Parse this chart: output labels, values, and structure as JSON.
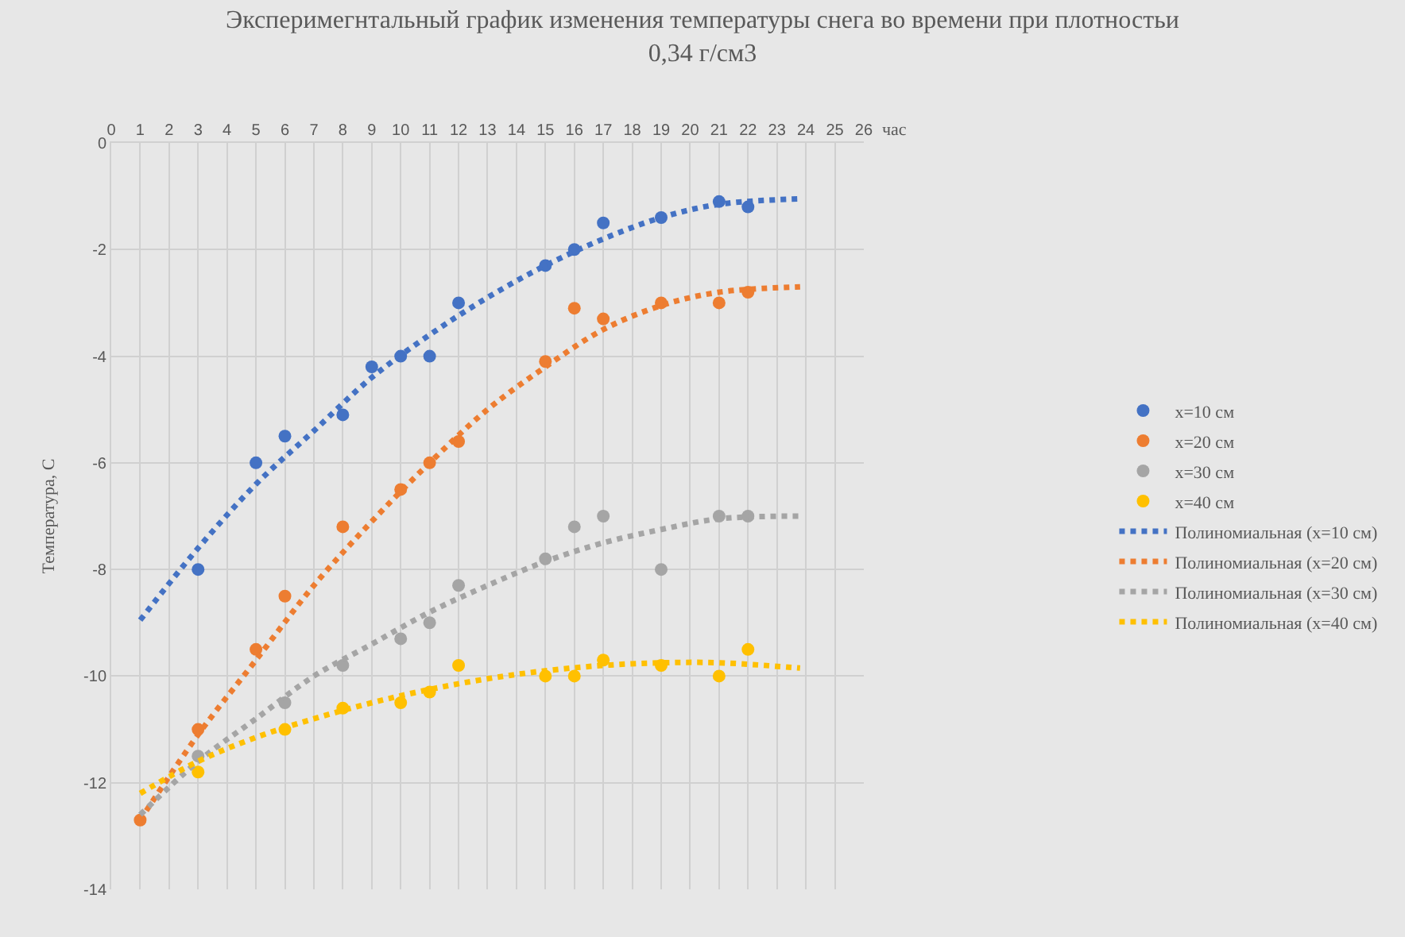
{
  "chart_data": {
    "type": "scatter",
    "title": "Эксперимегнтальный график изменения температуры снега во времени при плотностьи 0,34 г/см3",
    "xlabel": "час",
    "ylabel": "Температура, С",
    "xlim": [
      0,
      26
    ],
    "xticks": [
      0,
      1,
      2,
      3,
      4,
      5,
      6,
      7,
      8,
      9,
      10,
      11,
      12,
      13,
      14,
      15,
      16,
      17,
      18,
      19,
      20,
      21,
      22,
      23,
      24,
      25,
      26
    ],
    "ylim": [
      -14,
      0
    ],
    "yticks": [
      -14,
      -12,
      -10,
      -8,
      -6,
      -4,
      -2,
      0
    ],
    "grid": true,
    "legend": "right",
    "series": [
      {
        "name": "x=10 см",
        "marker": "circle",
        "color": "#4472c4",
        "x": [
          3,
          5,
          6,
          8,
          9,
          10,
          11,
          12,
          15,
          16,
          17,
          19,
          21,
          22
        ],
        "values": [
          -8,
          -6,
          -5.5,
          -5.1,
          -4.2,
          -4,
          -4,
          -3,
          -2.3,
          -2,
          -1.5,
          -1.4,
          -1.1,
          -1.2
        ]
      },
      {
        "name": "x=20 см",
        "marker": "circle",
        "color": "#ed7d31",
        "x": [
          1,
          3,
          5,
          6,
          8,
          10,
          11,
          12,
          15,
          16,
          17,
          19,
          21,
          22
        ],
        "values": [
          -12.7,
          -11,
          -9.5,
          -8.5,
          -7.2,
          -6.5,
          -6,
          -5.6,
          -4.1,
          -3.1,
          -3.3,
          -3,
          -3,
          -2.8
        ]
      },
      {
        "name": "x=30 см",
        "marker": "circle",
        "color": "#a5a5a5",
        "x": [
          3,
          6,
          8,
          10,
          11,
          12,
          15,
          16,
          17,
          19,
          21,
          22
        ],
        "values": [
          -11.5,
          -10.5,
          -9.8,
          -9.3,
          -9,
          -8.3,
          -7.8,
          -7.2,
          -7,
          -8,
          -7,
          -7
        ]
      },
      {
        "name": "x=40 см",
        "marker": "circle",
        "color": "#ffc000",
        "x": [
          3,
          6,
          8,
          10,
          11,
          12,
          15,
          16,
          17,
          19,
          21,
          22
        ],
        "values": [
          -11.8,
          -11,
          -10.6,
          -10.5,
          -10.3,
          -9.8,
          -10,
          -10,
          -9.7,
          -9.8,
          -10,
          -9.5
        ]
      },
      {
        "name": "Полиномиальная (x=10 см)",
        "type": "line",
        "line_style": "dotted",
        "color": "#4472c4",
        "x": [
          1,
          3,
          5,
          7,
          9,
          11,
          13,
          15,
          17,
          19,
          21,
          23.8
        ],
        "values": [
          -8.95,
          -7.6,
          -6.4,
          -5.4,
          -4.4,
          -3.6,
          -2.9,
          -2.3,
          -1.8,
          -1.4,
          -1.15,
          -1.05
        ]
      },
      {
        "name": "Полиномиальная (x=20 см)",
        "type": "line",
        "line_style": "dotted",
        "color": "#ed7d31",
        "x": [
          1,
          3,
          5,
          7,
          9,
          11,
          13,
          15,
          17,
          19,
          21,
          23.8
        ],
        "values": [
          -12.7,
          -11.1,
          -9.7,
          -8.3,
          -7.1,
          -6.0,
          -5.0,
          -4.2,
          -3.5,
          -3.05,
          -2.8,
          -2.7
        ]
      },
      {
        "name": "Полиномиальная (x=30 см)",
        "type": "line",
        "line_style": "dotted",
        "color": "#a5a5a5",
        "x": [
          1,
          3,
          5,
          7,
          9,
          11,
          13,
          15,
          17,
          19,
          21,
          23.8
        ],
        "values": [
          -12.6,
          -11.6,
          -10.8,
          -10.0,
          -9.4,
          -8.8,
          -8.3,
          -7.85,
          -7.5,
          -7.25,
          -7.05,
          -7.0
        ]
      },
      {
        "name": "Полиномиальная (x=40 см)",
        "type": "line",
        "line_style": "dotted",
        "color": "#ffc000",
        "x": [
          1,
          3,
          5,
          7,
          9,
          11,
          13,
          15,
          17,
          19,
          21,
          23.8
        ],
        "values": [
          -12.2,
          -11.6,
          -11.15,
          -10.8,
          -10.5,
          -10.25,
          -10.05,
          -9.9,
          -9.8,
          -9.75,
          -9.75,
          -9.85
        ]
      }
    ]
  }
}
